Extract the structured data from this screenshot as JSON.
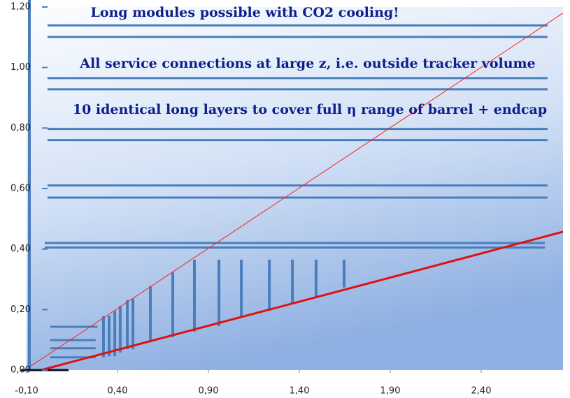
{
  "chart_data": {
    "type": "layout",
    "annotations": [
      "Long modules possible with CO2 cooling!",
      "All service connections at large z, i.e. outside tracker volume",
      "10 identical long layers to cover full η range of barrel + endcap"
    ],
    "xlim": [
      -0.1,
      2.85
    ],
    "ylim": [
      0,
      1.2
    ],
    "xticks": [
      {
        "value": -0.1,
        "label": "-0,10"
      },
      {
        "value": 0.4,
        "label": "0,40"
      },
      {
        "value": 0.9,
        "label": "0,90"
      },
      {
        "value": 1.4,
        "label": "1,40"
      },
      {
        "value": 1.9,
        "label": "1,90"
      },
      {
        "value": 2.4,
        "label": "2,40"
      }
    ],
    "yticks": [
      {
        "value": 0,
        "label": "0,00"
      },
      {
        "value": 0.2,
        "label": "0,20"
      },
      {
        "value": 0.4,
        "label": "0,40"
      },
      {
        "value": 0.6,
        "label": "0,60"
      },
      {
        "value": 0.8,
        "label": "0,80"
      },
      {
        "value": 1.0,
        "label": "1,00"
      },
      {
        "value": 1.2,
        "label": "1,20"
      }
    ],
    "layer_color": "#4a7ebb",
    "barrel_layers": [
      {
        "y": 1.139,
        "x0": 0.015,
        "x1": 2.765
      },
      {
        "y": 1.101,
        "x0": 0.015,
        "x1": 2.765
      },
      {
        "y": 0.965,
        "x0": 0.015,
        "x1": 2.765
      },
      {
        "y": 0.928,
        "x0": 0.015,
        "x1": 2.765
      },
      {
        "y": 0.797,
        "x0": 0.015,
        "x1": 2.765
      },
      {
        "y": 0.76,
        "x0": 0.015,
        "x1": 2.765
      },
      {
        "y": 0.61,
        "x0": 0.015,
        "x1": 2.765
      },
      {
        "y": 0.57,
        "x0": 0.015,
        "x1": 2.765
      },
      {
        "y": 0.42,
        "x0": 0.0,
        "x1": 2.75
      },
      {
        "y": 0.405,
        "x0": 0.0,
        "x1": 2.75
      },
      {
        "y": 0.143,
        "x0": 0.03,
        "x1": 0.29
      },
      {
        "y": 0.099,
        "x0": 0.03,
        "x1": 0.28
      },
      {
        "y": 0.072,
        "x0": 0.03,
        "x1": 0.28
      },
      {
        "y": 0.042,
        "x0": 0.03,
        "x1": 0.28
      }
    ],
    "endcap_disks": [
      {
        "x": 0.323,
        "y0": 0.042,
        "y1": 0.178
      },
      {
        "x": 0.354,
        "y0": 0.046,
        "y1": 0.18
      },
      {
        "x": 0.385,
        "y0": 0.046,
        "y1": 0.196
      },
      {
        "x": 0.415,
        "y0": 0.058,
        "y1": 0.212
      },
      {
        "x": 0.454,
        "y0": 0.069,
        "y1": 0.231
      },
      {
        "x": 0.485,
        "y0": 0.069,
        "y1": 0.236
      },
      {
        "x": 0.581,
        "y0": 0.092,
        "y1": 0.277
      },
      {
        "x": 0.704,
        "y0": 0.109,
        "y1": 0.323
      },
      {
        "x": 0.823,
        "y0": 0.127,
        "y1": 0.365
      },
      {
        "x": 0.958,
        "y0": 0.145,
        "y1": 0.365
      },
      {
        "x": 1.081,
        "y0": 0.178,
        "y1": 0.365
      },
      {
        "x": 1.235,
        "y0": 0.196,
        "y1": 0.365
      },
      {
        "x": 1.362,
        "y0": 0.217,
        "y1": 0.365
      },
      {
        "x": 1.492,
        "y0": 0.238,
        "y1": 0.365
      },
      {
        "x": 1.646,
        "y0": 0.273,
        "y1": 0.365
      }
    ],
    "lines": [
      {
        "color": "#ff2020",
        "width": 1,
        "x": [
          -0.092,
          2.85
        ],
        "y": [
          0.007,
          1.18
        ]
      },
      {
        "color": "#e01010",
        "width": 3,
        "x": [
          -0.02,
          2.85
        ],
        "y": [
          0,
          0.457
        ]
      }
    ]
  }
}
